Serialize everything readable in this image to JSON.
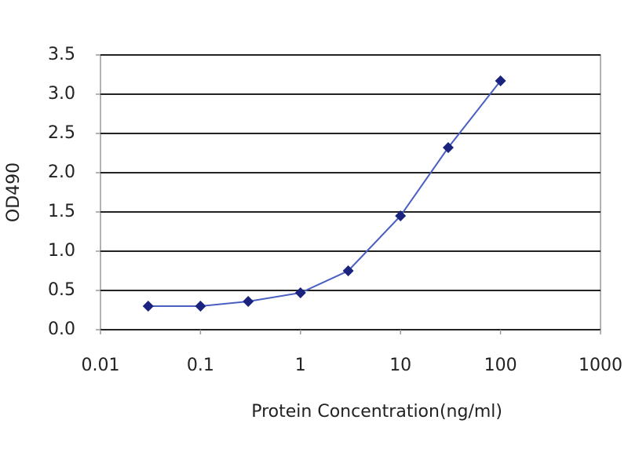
{
  "chart_data": {
    "type": "line",
    "xlabel": "Protein Concentration(ng/ml)",
    "ylabel": "OD490",
    "x": [
      0.03,
      0.1,
      0.3,
      1,
      3,
      10,
      30,
      100
    ],
    "values": [
      0.3,
      0.3,
      0.36,
      0.47,
      0.75,
      1.45,
      2.32,
      3.17
    ],
    "color": "#1a237e",
    "line_color": "#4a5fc1",
    "xlog": true,
    "xlim": [
      0.01,
      1000
    ],
    "xticks": [
      0.01,
      0.1,
      1,
      10,
      100,
      1000
    ],
    "ylim": [
      0,
      3.5
    ],
    "yticks": [
      {
        "value": 0,
        "label": "0.0"
      },
      0.5,
      {
        "value": 1,
        "label": "1.0"
      },
      1.5,
      {
        "value": 2,
        "label": "2.0"
      },
      2.5,
      {
        "value": 3,
        "label": "3.0"
      },
      3.5
    ],
    "grid": true
  }
}
